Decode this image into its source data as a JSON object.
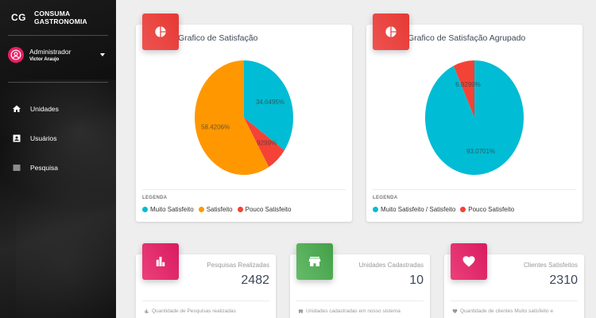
{
  "sidebar": {
    "brand_mini": "CG",
    "brand_name": "CONSUMA GASTRONOMIA",
    "user_role": "Administrador",
    "user_name": "Victor Araujo",
    "nav": [
      {
        "label": "Unidades",
        "icon": "home-icon"
      },
      {
        "label": "Usuários",
        "icon": "contact-card-icon"
      },
      {
        "label": "Pesquisa",
        "icon": "list-icon"
      }
    ]
  },
  "charts": {
    "satisfaction": {
      "title": "Grafico de Satisfação",
      "legend_title": "LEGENDA",
      "legend": [
        "Muito Satisfeito",
        "Satisfeito",
        "Pouco Satisfeito"
      ]
    },
    "grouped": {
      "title": "Grafico de Satisfação Agrupado",
      "legend_title": "LEGENDA",
      "legend": [
        "Muito Satisfeito / Satisfeito",
        "Pouco Satisfeito"
      ]
    }
  },
  "chart_data": [
    {
      "type": "pie",
      "title": "Grafico de Satisfação",
      "series": [
        {
          "name": "Muito Satisfeito",
          "value": 34.6495,
          "label": "34.6495%",
          "color": "#00bcd4"
        },
        {
          "name": "Pouco Satisfeito",
          "value": 6.9299,
          "label": "6.9299%",
          "color": "#f44336"
        },
        {
          "name": "Satisfeito",
          "value": 58.4206,
          "label": "58.4206%",
          "color": "#ff9800"
        }
      ]
    },
    {
      "type": "pie",
      "title": "Grafico de Satisfação Agrupado",
      "series": [
        {
          "name": "Muito Satisfeito / Satisfeito",
          "value": 93.0701,
          "label": "93.0701%",
          "color": "#00bcd4"
        },
        {
          "name": "Pouco Satisfeito",
          "value": 6.9299,
          "label": "6.9299%",
          "color": "#f44336"
        }
      ]
    }
  ],
  "stats": [
    {
      "label": "Pesquisas Realizadas",
      "value": "2482",
      "footer": "Quantidade de Pesquisas realizadas",
      "icon": "bar-chart-icon",
      "color": "#e91e63"
    },
    {
      "label": "Unidades Cadastradas",
      "value": "10",
      "footer": "Unidades cadastradas em nosso sistema",
      "icon": "store-icon",
      "color": "#4caf50"
    },
    {
      "label": "Clientes Satisfeitos",
      "value": "2310",
      "footer": "Quantidade de clientes Muito satisfeito e",
      "icon": "heart-icon",
      "color": "#e91e63"
    }
  ],
  "colors": {
    "muito_satisfeito": "#00bcd4",
    "satisfeito": "#ff9800",
    "pouco_satisfeito": "#f44336",
    "icon_red": "#e53935",
    "icon_pink": "#e91e63",
    "icon_green": "#4caf50"
  }
}
